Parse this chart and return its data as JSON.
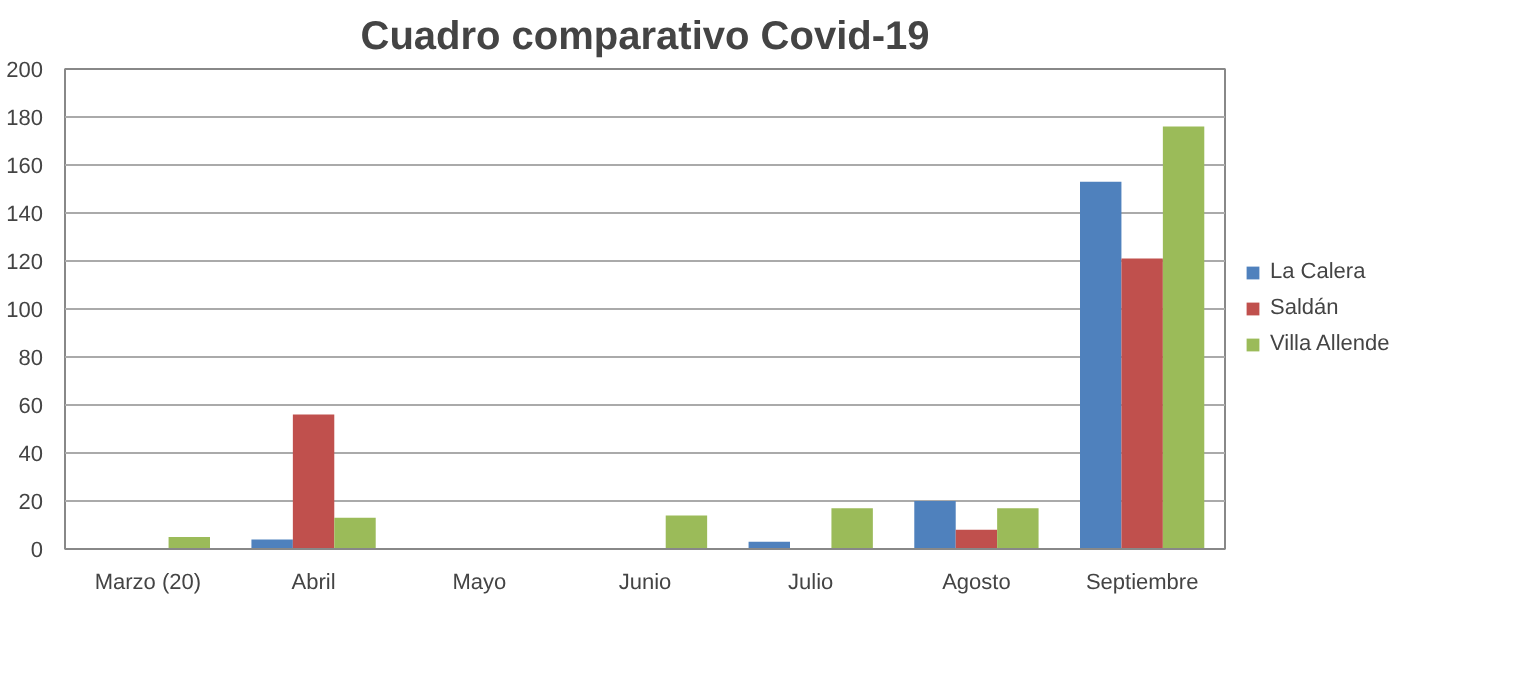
{
  "chart_data": {
    "type": "bar",
    "title": "Cuadro comparativo Covid-19",
    "categories": [
      "Marzo (20)",
      "Abril",
      "Mayo",
      "Junio",
      "Julio",
      "Agosto",
      "Septiembre"
    ],
    "series": [
      {
        "name": "La Calera",
        "color": "#4f81bd",
        "values": [
          0,
          4,
          0,
          0,
          3,
          20,
          153
        ]
      },
      {
        "name": "Saldán",
        "color": "#c0504d",
        "values": [
          0,
          56,
          0,
          0,
          0,
          8,
          121
        ]
      },
      {
        "name": "Villa Allende",
        "color": "#9bbb59",
        "values": [
          5,
          13,
          0,
          14,
          17,
          17,
          176
        ]
      }
    ],
    "ylim": [
      0,
      200
    ],
    "yticks": [
      0,
      20,
      40,
      60,
      80,
      100,
      120,
      140,
      160,
      180,
      200
    ],
    "grid": "y",
    "legend": "right"
  }
}
